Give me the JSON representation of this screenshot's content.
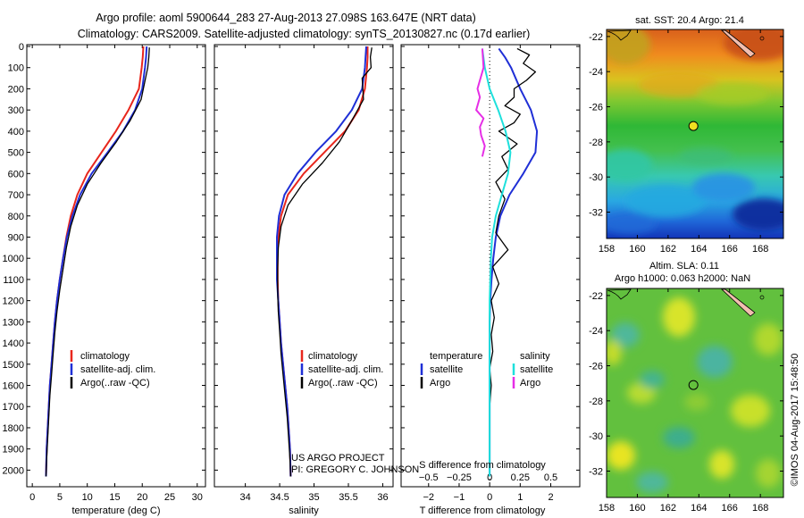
{
  "figure": {
    "title_line1": "Argo profile: aoml 5900644_283 27-Aug-2013 27.098S 163.647E (NRT data)",
    "title_line2": "Climatology: CARS2009. Satellite-adjusted climatology: synTS_20130827.nc (0.17d earlier)",
    "project_line1": "US ARGO PROJECT",
    "project_line2": "PI: GREGORY C. JOHNSON",
    "watermark": "©IMOS 04-Aug-2017 15:48:50"
  },
  "colors": {
    "climatology": "#e8261c",
    "satellite": "#1f2fd6",
    "argo": "#000000",
    "sal_satellite": "#1ee0dc",
    "sal_argo": "#e62ee6"
  },
  "chart_data": [
    {
      "id": "temperature",
      "type": "line",
      "xlabel": "temperature (deg C)",
      "ylabel": "",
      "xlim": [
        -1,
        31.5
      ],
      "ylim": [
        2070,
        0
      ],
      "xticks": [
        0,
        5,
        10,
        15,
        20,
        25,
        30
      ],
      "xtick_labels": [
        "0",
        "5",
        "10",
        "15",
        "20",
        "25",
        "30"
      ],
      "yticks": [
        0,
        100,
        200,
        300,
        400,
        500,
        600,
        700,
        800,
        900,
        1000,
        1100,
        1200,
        1300,
        1400,
        1500,
        1600,
        1700,
        1800,
        1900,
        2000
      ],
      "legend": [
        "climatology",
        "satellite-adj. clim.",
        "Argo(..raw -QC)"
      ],
      "series": [
        {
          "name": "climatology",
          "color": "#e8261c",
          "x": [
            20.2,
            20.1,
            19.9,
            19.4,
            17.5,
            15.2,
            12.6,
            10.0,
            8.2,
            7.0,
            6.2,
            5.6,
            5.0,
            4.5,
            4.1,
            3.8,
            3.5,
            3.2,
            3.0,
            2.8,
            2.6,
            2.5
          ],
          "y": [
            0,
            50,
            100,
            200,
            300,
            400,
            500,
            600,
            700,
            800,
            900,
            1000,
            1100,
            1200,
            1300,
            1400,
            1500,
            1600,
            1700,
            1800,
            1900,
            2030
          ]
        },
        {
          "name": "satellite-adj. clim.",
          "color": "#1f2fd6",
          "x": [
            20.8,
            20.7,
            20.5,
            20.0,
            18.7,
            16.5,
            13.7,
            10.8,
            8.7,
            7.3,
            6.3,
            5.6,
            5.0,
            4.5,
            4.1,
            3.8,
            3.5,
            3.2,
            3.0,
            2.8,
            2.6,
            2.5
          ],
          "y": [
            0,
            50,
            100,
            200,
            300,
            400,
            500,
            600,
            700,
            800,
            900,
            1000,
            1100,
            1200,
            1300,
            1400,
            1500,
            1600,
            1700,
            1800,
            1900,
            2030
          ]
        },
        {
          "name": "Argo(..raw -QC)",
          "color": "#000000",
          "x": [
            21.3,
            21.2,
            21.0,
            20.6,
            19.8,
            17.8,
            15.3,
            12.5,
            10.0,
            8.2,
            7.0,
            6.2,
            5.6,
            5.0,
            4.5,
            4.1,
            3.8,
            3.5,
            3.2,
            3.0,
            2.8,
            2.6,
            2.5
          ],
          "y": [
            5,
            50,
            100,
            150,
            250,
            350,
            450,
            550,
            650,
            750,
            850,
            950,
            1050,
            1150,
            1250,
            1350,
            1450,
            1550,
            1650,
            1750,
            1850,
            1950,
            2030
          ]
        }
      ]
    },
    {
      "id": "salinity",
      "type": "line",
      "xlabel": "salinity",
      "xlim": [
        33.55,
        36.15
      ],
      "ylim": [
        2070,
        0
      ],
      "xticks": [
        34,
        34.5,
        35,
        35.5,
        36
      ],
      "xtick_labels": [
        "34",
        "34.5",
        "35",
        "35.5",
        "36"
      ],
      "legend": [
        "climatology",
        "satellite-adj. clim.",
        "Argo(..raw -QC)"
      ],
      "series": [
        {
          "name": "climatology",
          "color": "#e8261c",
          "x": [
            35.78,
            35.78,
            35.77,
            35.74,
            35.65,
            35.45,
            35.15,
            34.85,
            34.62,
            34.52,
            34.48,
            34.47,
            34.47,
            34.48,
            34.5,
            34.52,
            34.55,
            34.58,
            34.61,
            34.63,
            34.65,
            34.66
          ],
          "y": [
            0,
            50,
            100,
            200,
            300,
            400,
            500,
            600,
            700,
            800,
            900,
            1000,
            1100,
            1200,
            1300,
            1400,
            1500,
            1600,
            1700,
            1800,
            1900,
            2030
          ]
        },
        {
          "name": "satellite-adj. clim.",
          "color": "#1f2fd6",
          "x": [
            35.76,
            35.75,
            35.74,
            35.7,
            35.55,
            35.32,
            35.02,
            34.76,
            34.57,
            34.49,
            34.46,
            34.46,
            34.46,
            34.48,
            34.5,
            34.52,
            34.55,
            34.58,
            34.61,
            34.63,
            34.65,
            34.66
          ],
          "y": [
            0,
            50,
            100,
            200,
            300,
            400,
            500,
            600,
            700,
            800,
            900,
            1000,
            1100,
            1200,
            1300,
            1400,
            1500,
            1600,
            1700,
            1800,
            1900,
            2030
          ]
        },
        {
          "name": "Argo(..raw -QC)",
          "color": "#000000",
          "x": [
            35.84,
            35.82,
            35.83,
            35.7,
            35.72,
            35.55,
            35.37,
            35.12,
            34.83,
            34.62,
            34.52,
            34.48,
            34.47,
            34.47,
            34.48,
            34.5,
            34.52,
            34.55,
            34.58,
            34.61,
            34.63,
            34.65,
            34.66
          ],
          "y": [
            5,
            50,
            100,
            150,
            250,
            350,
            450,
            550,
            650,
            750,
            850,
            950,
            1050,
            1150,
            1250,
            1350,
            1450,
            1550,
            1650,
            1750,
            1850,
            1950,
            2030
          ]
        }
      ]
    },
    {
      "id": "difference",
      "type": "line",
      "xlabel": "T difference from climatology",
      "xlabel_top": "S difference from climatology",
      "xlim": [
        -2.9,
        2.95
      ],
      "ylim": [
        2070,
        0
      ],
      "xticks": [
        -2,
        -1,
        0,
        1,
        2
      ],
      "xtick_labels": [
        "−2",
        "−1",
        "0",
        "1",
        "2"
      ],
      "s_xticks": [
        -0.5,
        -0.25,
        0,
        0.25,
        0.5
      ],
      "s_xtick_labels": [
        "−0.5",
        "−0.25",
        "0",
        "0.25",
        "0.5"
      ],
      "legend_left": [
        "temperature",
        "satellite",
        "Argo"
      ],
      "legend_right": [
        "salinity",
        "satellite",
        "Argo"
      ],
      "series": [
        {
          "name": "temperature satellite",
          "color": "#1f2fd6",
          "x": [
            0.3,
            0.5,
            0.7,
            1.0,
            1.35,
            1.55,
            1.5,
            1.1,
            0.65,
            0.35,
            0.2,
            0.12,
            0.06,
            0.02,
            0.0,
            0.0,
            0.0,
            0.0,
            0.0,
            0.0
          ],
          "y": [
            10,
            50,
            100,
            200,
            300,
            400,
            500,
            600,
            700,
            800,
            900,
            1000,
            1100,
            1200,
            1300,
            1400,
            1500,
            1600,
            1800,
            2030
          ]
        },
        {
          "name": "temperature Argo",
          "color": "#000000",
          "x": [
            0.9,
            1.3,
            1.1,
            1.5,
            1.2,
            0.8,
            0.8,
            0.5,
            1.0,
            0.8,
            0.3,
            0.9,
            0.4,
            0.6,
            0.2,
            0.5,
            0.3,
            0.2,
            0.6,
            0.1,
            0.3,
            0.05,
            0.15,
            0.05,
            0.1,
            0.0,
            0.05,
            0.0,
            0.0,
            0.0
          ],
          "y": [
            10,
            40,
            80,
            120,
            160,
            200,
            240,
            280,
            320,
            360,
            400,
            460,
            520,
            580,
            640,
            720,
            800,
            880,
            960,
            1040,
            1120,
            1200,
            1280,
            1360,
            1440,
            1520,
            1600,
            1700,
            1850,
            2030
          ]
        },
        {
          "name": "salinity satellite",
          "color": "#1ee0dc",
          "x": [
            -0.06,
            -0.04,
            0.0,
            0.07,
            0.13,
            0.17,
            0.15,
            0.1,
            0.05,
            0.02,
            0.01,
            0.0,
            0.0,
            0.0,
            0.0
          ],
          "y": [
            10,
            100,
            200,
            300,
            400,
            500,
            600,
            700,
            800,
            900,
            1000,
            1200,
            1400,
            1700,
            2030
          ]
        },
        {
          "name": "salinity Argo",
          "color": "#e62ee6",
          "x": [
            -0.06,
            -0.05,
            -0.1,
            -0.08,
            -0.11,
            -0.05,
            -0.08,
            -0.07,
            -0.04,
            -0.06
          ],
          "y": [
            10,
            100,
            200,
            240,
            300,
            340,
            380,
            420,
            470,
            520
          ]
        }
      ]
    }
  ],
  "maps": [
    {
      "id": "sst",
      "title_line1": "sat. SST: 20.4  Argo: 21.4",
      "title_line2": "",
      "xticks": [
        "158",
        "160",
        "162",
        "164",
        "166",
        "168"
      ],
      "yticks": [
        "-22",
        "-24",
        "-26",
        "-28",
        "-30",
        "-32"
      ],
      "argo_lon": 163.647,
      "argo_lat": -27.098,
      "lon_range": [
        158,
        169.5
      ],
      "lat_range": [
        -33.5,
        -21.6
      ]
    },
    {
      "id": "sla",
      "title_line1": "Altim. SLA: 0.11",
      "title_line2": "Argo h1000: 0.063 h2000: NaN",
      "xticks": [
        "158",
        "160",
        "162",
        "164",
        "166",
        "168"
      ],
      "yticks": [
        "-22",
        "-24",
        "-26",
        "-28",
        "-30",
        "-32"
      ],
      "argo_lon": 163.647,
      "argo_lat": -27.098,
      "lon_range": [
        158,
        169.5
      ],
      "lat_range": [
        -33.5,
        -21.6
      ]
    }
  ]
}
